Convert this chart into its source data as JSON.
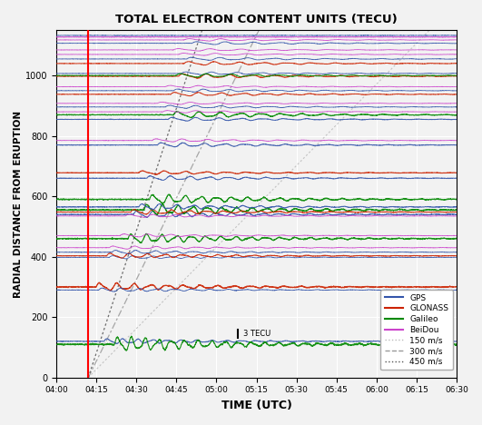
{
  "title": "TOTAL ELECTRON CONTENT UNITS (TECU)",
  "xlabel": "TIME (UTC)",
  "ylabel": "RADIAL DISTANCE FROM ERUPTION",
  "xlim_minutes": [
    0,
    150
  ],
  "ylim": [
    0,
    1150
  ],
  "eruption_minute": 12,
  "x_tick_labels": [
    "04:00",
    "04:15",
    "04:30",
    "04:45",
    "05:00",
    "05:15",
    "05:30",
    "05:45",
    "06:00",
    "06:15",
    "06:30"
  ],
  "x_tick_minutes": [
    0,
    15,
    30,
    45,
    60,
    75,
    90,
    105,
    120,
    135,
    150
  ],
  "background_color": "#f2f2f2",
  "grid_color": "#ffffff",
  "satellite_tracks": [
    {
      "system": "GPS",
      "base_dist": 120,
      "amplitude": 8,
      "wave_start": 18,
      "wave_freq": 0.18,
      "color": "#3355aa",
      "lw": 0.7
    },
    {
      "system": "GLONASS",
      "base_dist": 300,
      "amplitude": 12,
      "wave_start": 15,
      "wave_freq": 0.16,
      "color": "#cc2200",
      "lw": 0.9
    },
    {
      "system": "GPS",
      "base_dist": 290,
      "amplitude": 6,
      "wave_start": 16,
      "wave_freq": 0.15,
      "color": "#3355aa",
      "lw": 0.6
    },
    {
      "system": "Galileo",
      "base_dist": 110,
      "amplitude": 22,
      "wave_start": 22,
      "wave_freq": 0.2,
      "color": "#008800",
      "lw": 0.8
    },
    {
      "system": "GPS",
      "base_dist": 398,
      "amplitude": 5,
      "wave_start": 20,
      "wave_freq": 0.14,
      "color": "#3355aa",
      "lw": 0.6
    },
    {
      "system": "GLONASS",
      "base_dist": 403,
      "amplitude": 8,
      "wave_start": 19,
      "wave_freq": 0.15,
      "color": "#cc2200",
      "lw": 0.7
    },
    {
      "system": "GPS",
      "base_dist": 415,
      "amplitude": 6,
      "wave_start": 21,
      "wave_freq": 0.14,
      "color": "#3355aa",
      "lw": 0.6
    },
    {
      "system": "BeiDou",
      "base_dist": 430,
      "amplitude": 5,
      "wave_start": 20,
      "wave_freq": 0.13,
      "color": "#cc44cc",
      "lw": 0.6
    },
    {
      "system": "Galileo",
      "base_dist": 460,
      "amplitude": 14,
      "wave_start": 27,
      "wave_freq": 0.18,
      "color": "#008800",
      "lw": 0.8
    },
    {
      "system": "BeiDou",
      "base_dist": 470,
      "amplitude": 5,
      "wave_start": 24,
      "wave_freq": 0.12,
      "color": "#cc44cc",
      "lw": 0.6
    },
    {
      "system": "GPS",
      "base_dist": 540,
      "amplitude": 10,
      "wave_start": 29,
      "wave_freq": 0.17,
      "color": "#3355aa",
      "lw": 0.7
    },
    {
      "system": "Galileo",
      "base_dist": 555,
      "amplitude": 16,
      "wave_start": 33,
      "wave_freq": 0.18,
      "color": "#008800",
      "lw": 0.8
    },
    {
      "system": "GLONASS",
      "base_dist": 548,
      "amplitude": 8,
      "wave_start": 28,
      "wave_freq": 0.15,
      "color": "#cc2200",
      "lw": 0.7
    },
    {
      "system": "BeiDou",
      "base_dist": 535,
      "amplitude": 5,
      "wave_start": 26,
      "wave_freq": 0.12,
      "color": "#cc44cc",
      "lw": 0.6
    },
    {
      "system": "GPS",
      "base_dist": 565,
      "amplitude": 9,
      "wave_start": 31,
      "wave_freq": 0.16,
      "color": "#3355aa",
      "lw": 0.7
    },
    {
      "system": "Galileo",
      "base_dist": 590,
      "amplitude": 14,
      "wave_start": 35,
      "wave_freq": 0.17,
      "color": "#008800",
      "lw": 0.8
    },
    {
      "system": "GPS",
      "base_dist": 660,
      "amplitude": 7,
      "wave_start": 34,
      "wave_freq": 0.14,
      "color": "#3355aa",
      "lw": 0.7
    },
    {
      "system": "GLONASS",
      "base_dist": 678,
      "amplitude": 6,
      "wave_start": 31,
      "wave_freq": 0.13,
      "color": "#cc2200",
      "lw": 0.8
    },
    {
      "system": "GPS",
      "base_dist": 770,
      "amplitude": 7,
      "wave_start": 38,
      "wave_freq": 0.13,
      "color": "#3355aa",
      "lw": 0.7
    },
    {
      "system": "BeiDou",
      "base_dist": 785,
      "amplitude": 5,
      "wave_start": 36,
      "wave_freq": 0.11,
      "color": "#cc44cc",
      "lw": 0.6
    },
    {
      "system": "GPS",
      "base_dist": 855,
      "amplitude": 6,
      "wave_start": 42,
      "wave_freq": 0.12,
      "color": "#3355aa",
      "lw": 0.7
    },
    {
      "system": "Galileo",
      "base_dist": 870,
      "amplitude": 10,
      "wave_start": 44,
      "wave_freq": 0.13,
      "color": "#008800",
      "lw": 0.8
    },
    {
      "system": "BeiDou",
      "base_dist": 880,
      "amplitude": 4,
      "wave_start": 40,
      "wave_freq": 0.1,
      "color": "#cc44cc",
      "lw": 0.6
    },
    {
      "system": "GPS",
      "base_dist": 896,
      "amplitude": 5,
      "wave_start": 41,
      "wave_freq": 0.11,
      "color": "#3355aa",
      "lw": 0.6
    },
    {
      "system": "BeiDou",
      "base_dist": 908,
      "amplitude": 4,
      "wave_start": 38,
      "wave_freq": 0.1,
      "color": "#cc44cc",
      "lw": 0.6
    },
    {
      "system": "GLONASS",
      "base_dist": 938,
      "amplitude": 6,
      "wave_start": 43,
      "wave_freq": 0.12,
      "color": "#cc2200",
      "lw": 0.7
    },
    {
      "system": "GPS",
      "base_dist": 950,
      "amplitude": 5,
      "wave_start": 44,
      "wave_freq": 0.11,
      "color": "#3355aa",
      "lw": 0.6
    },
    {
      "system": "BeiDou",
      "base_dist": 963,
      "amplitude": 4,
      "wave_start": 41,
      "wave_freq": 0.1,
      "color": "#cc44cc",
      "lw": 0.6
    },
    {
      "system": "GLONASS",
      "base_dist": 998,
      "amplitude": 7,
      "wave_start": 46,
      "wave_freq": 0.12,
      "color": "#cc2200",
      "lw": 0.8
    },
    {
      "system": "GPS",
      "base_dist": 1007,
      "amplitude": 5,
      "wave_start": 47,
      "wave_freq": 0.11,
      "color": "#3355aa",
      "lw": 0.6
    },
    {
      "system": "Galileo",
      "base_dist": 1000,
      "amplitude": 6,
      "wave_start": 45,
      "wave_freq": 0.11,
      "color": "#008800",
      "lw": 0.7
    },
    {
      "system": "GLONASS",
      "base_dist": 1040,
      "amplitude": 6,
      "wave_start": 48,
      "wave_freq": 0.11,
      "color": "#cc2200",
      "lw": 0.7
    },
    {
      "system": "GPS",
      "base_dist": 1055,
      "amplitude": 5,
      "wave_start": 49,
      "wave_freq": 0.1,
      "color": "#3355aa",
      "lw": 0.6
    },
    {
      "system": "BeiDou",
      "base_dist": 1070,
      "amplitude": 4,
      "wave_start": 46,
      "wave_freq": 0.09,
      "color": "#cc44cc",
      "lw": 0.6
    },
    {
      "system": "BeiDou",
      "base_dist": 1085,
      "amplitude": 4,
      "wave_start": 44,
      "wave_freq": 0.09,
      "color": "#cc44cc",
      "lw": 0.6
    },
    {
      "system": "GPS",
      "base_dist": 1107,
      "amplitude": 5,
      "wave_start": 51,
      "wave_freq": 0.1,
      "color": "#3355aa",
      "lw": 0.6
    },
    {
      "system": "BeiDou",
      "base_dist": 1118,
      "amplitude": 4,
      "wave_start": 48,
      "wave_freq": 0.09,
      "color": "#cc44cc",
      "lw": 0.6
    }
  ],
  "flat_lines": [
    {
      "base_dist": 1128,
      "color": "#cc44cc",
      "lw": 0.8
    },
    {
      "base_dist": 1133,
      "color": "#3355aa",
      "lw": 0.6
    }
  ]
}
